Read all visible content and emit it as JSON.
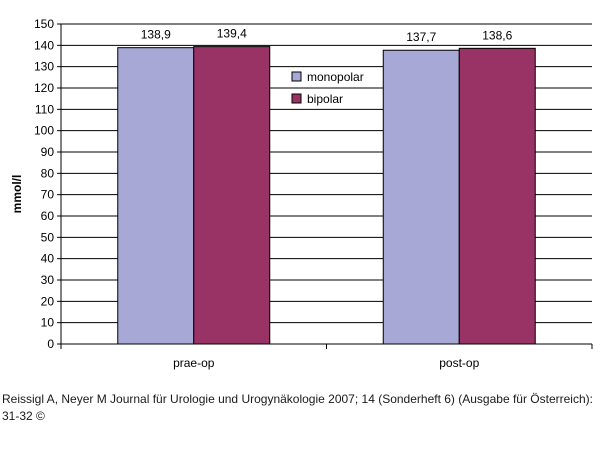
{
  "chart_data": {
    "type": "bar",
    "categories": [
      "prae-op",
      "post-op"
    ],
    "series": [
      {
        "name": "monopolar",
        "values": [
          138.9,
          137.7
        ],
        "labels": [
          "138,9",
          "137,7"
        ],
        "color": "#a8a8d6"
      },
      {
        "name": "bipolar",
        "values": [
          139.4,
          138.6
        ],
        "labels": [
          "139,4",
          "138,6"
        ],
        "color": "#993366"
      }
    ],
    "ylabel": "mmol/l",
    "xlabel": "",
    "ylim": [
      0,
      150
    ],
    "yticks": [
      "0",
      "10",
      "20",
      "30",
      "40",
      "50",
      "60",
      "70",
      "80",
      "90",
      "100",
      "110",
      "120",
      "130",
      "140",
      "150"
    ],
    "grid": true,
    "legend_placement": "right"
  },
  "caption": "Reissigl A, Neyer M Journal für Urologie und Urogynäkologie 2007; 14 (Sonderheft 6) (Ausgabe für Österreich): 31-32 ©"
}
